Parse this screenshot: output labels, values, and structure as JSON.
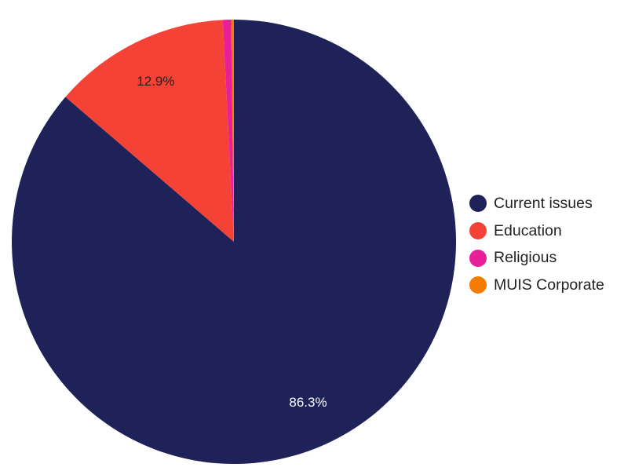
{
  "chart_data": {
    "type": "pie",
    "title": "",
    "slices": [
      {
        "name": "Current issues",
        "value": 86.3,
        "color": "#1e2259",
        "label": "86.3%",
        "label_color": "#ffffff"
      },
      {
        "name": "Education",
        "value": 12.9,
        "color": "#f44336",
        "label": "12.9%",
        "label_color": "#222222"
      },
      {
        "name": "Religious",
        "value": 0.6,
        "color": "#e91e99",
        "label": "",
        "label_color": "#222222"
      },
      {
        "name": "MUIS Corporate",
        "value": 0.2,
        "color": "#f57c00",
        "label": "",
        "label_color": "#222222"
      }
    ],
    "legend_position": "right"
  }
}
